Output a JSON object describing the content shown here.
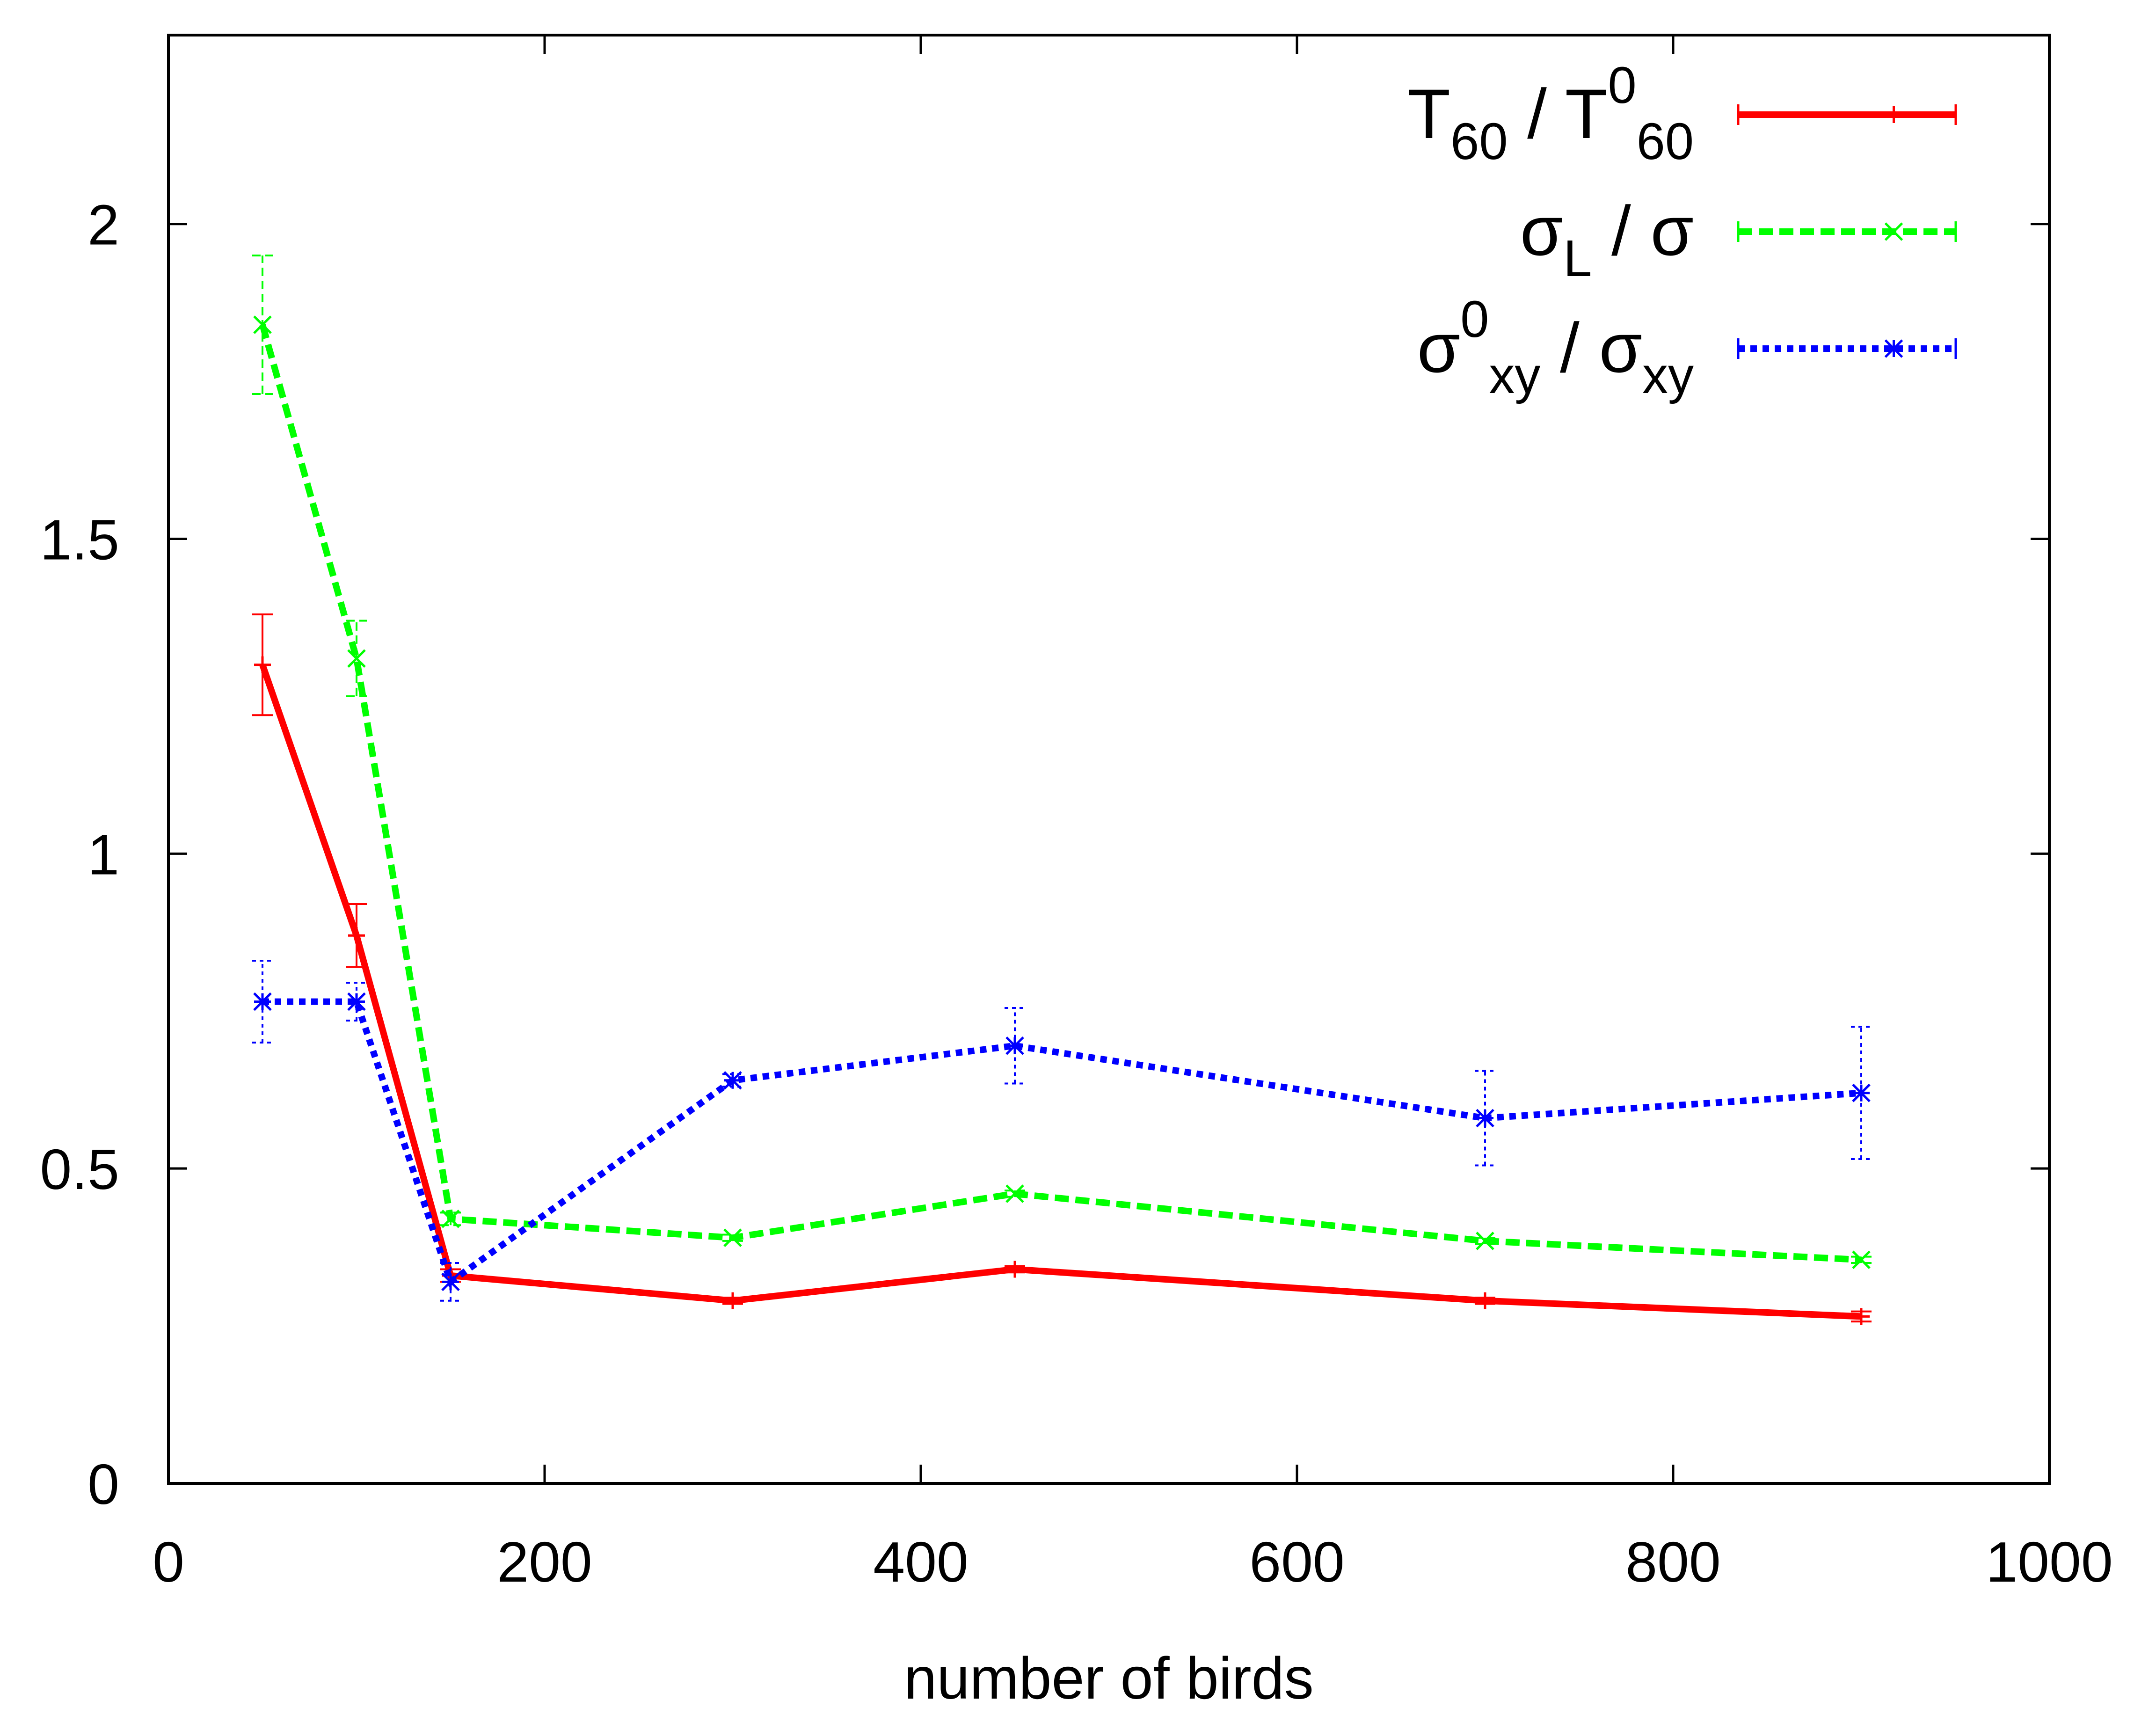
{
  "chart_data": {
    "type": "line",
    "title": "",
    "xlabel": "number of birds",
    "ylabel": "",
    "xlim": [
      0,
      1000
    ],
    "ylim": [
      0,
      2.3
    ],
    "xticks": [
      0,
      200,
      400,
      600,
      800,
      1000
    ],
    "xtick_labels": [
      "0",
      "200",
      "400",
      "600",
      "800",
      "1000"
    ],
    "yticks": [
      0,
      0.5,
      1,
      1.5,
      2
    ],
    "ytick_labels": [
      "0",
      "0.5",
      "1",
      "1.5",
      "2"
    ],
    "grid": false,
    "legend_position": "top-right",
    "series": [
      {
        "name": "T60 / T60^0",
        "legend": {
          "main1": "T",
          "sub1": "60",
          "mid": " / T",
          "sup2": "0",
          "sub2": "60"
        },
        "color": "#ff0000",
        "style": "solid",
        "marker": "plus",
        "x": [
          50,
          100,
          150,
          300,
          450,
          700,
          900
        ],
        "y": [
          1.3,
          0.87,
          0.33,
          0.29,
          0.34,
          0.29,
          0.265
        ],
        "yerr": [
          0.08,
          0.05,
          0.01,
          0.005,
          0.005,
          0.005,
          0.008
        ]
      },
      {
        "name": "sigma_L / sigma",
        "legend": {
          "main1": "σ",
          "sub1": "L",
          "mid": " / σ"
        },
        "color": "#00ff00",
        "style": "dashed",
        "marker": "x",
        "x": [
          50,
          100,
          150,
          300,
          450,
          700,
          900
        ],
        "y": [
          1.84,
          1.31,
          0.42,
          0.39,
          0.46,
          0.385,
          0.355
        ],
        "yerr": [
          0.11,
          0.06,
          0.01,
          0.005,
          0.005,
          0.005,
          0.005
        ]
      },
      {
        "name": "sigma_xy^0 / sigma_xy",
        "legend": {
          "main1": "σ",
          "sup1": "0",
          "sub1": "xy",
          "mid": " / σ",
          "sub2": "xy"
        },
        "color": "#0000ff",
        "style": "dotted",
        "marker": "star",
        "x": [
          50,
          100,
          150,
          300,
          450,
          700,
          900
        ],
        "y": [
          0.765,
          0.765,
          0.32,
          0.64,
          0.695,
          0.58,
          0.62
        ],
        "yerr": [
          0.065,
          0.03,
          0.03,
          0.01,
          0.06,
          0.075,
          0.105
        ]
      }
    ]
  }
}
